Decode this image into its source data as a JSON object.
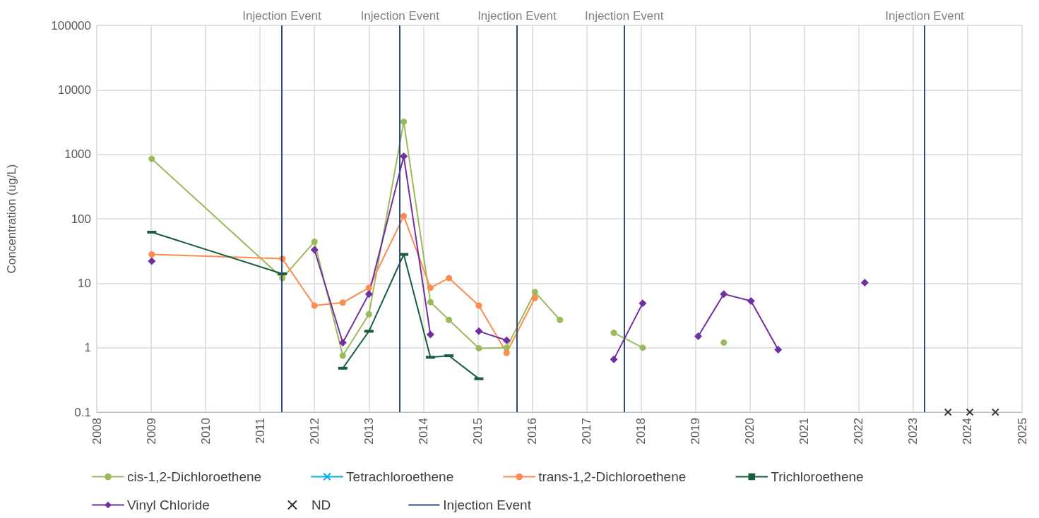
{
  "chart_data": {
    "type": "line",
    "ylabel": "Concentration (ug/L)",
    "log": "y",
    "grid": true,
    "legend": "bottom",
    "xlim": [
      2008,
      2025
    ],
    "xticks": [
      2008,
      2009,
      2010,
      2011,
      2012,
      2013,
      2014,
      2015,
      2016,
      2017,
      2018,
      2019,
      2020,
      2021,
      2022,
      2023,
      2024,
      2025
    ],
    "ylim": [
      0.1,
      100000
    ],
    "yticks": [
      0.1,
      1,
      10,
      100,
      1000,
      10000,
      100000
    ],
    "series": [
      {
        "name": "cis-1,2-Dichloroethene",
        "color": "#9bbb59",
        "marker": "circle",
        "x": [
          2009.01,
          2011.41,
          2012.0,
          2012.52,
          2013.0,
          2013.64,
          2014.13,
          2014.47,
          2015.02,
          2015.53,
          2016.05,
          2016.51,
          2017.0,
          2017.5,
          2018.03,
          2018.8,
          2019.52
        ],
        "values": [
          850,
          12,
          44,
          0.75,
          3.3,
          3200,
          5.1,
          2.7,
          0.98,
          1.0,
          7.3,
          2.7,
          null,
          1.7,
          1.0,
          null,
          1.2
        ]
      },
      {
        "name": "Tetrachloroethene",
        "color": "#00b0f0",
        "marker": "cross"
      },
      {
        "name": "trans-1,2-Dichloroethene",
        "color": "#ff8c4f",
        "marker": "circle",
        "x": [
          2009.01,
          2011.41,
          2012.0,
          2012.52,
          2013.0,
          2013.64,
          2014.13,
          2014.47,
          2015.02,
          2015.53,
          2016.05
        ],
        "values": [
          28,
          24,
          4.5,
          5.0,
          8.5,
          110,
          8.5,
          12,
          4.5,
          0.83,
          5.9
        ]
      },
      {
        "name": "Trichloroethene",
        "color": "#1a5c3e",
        "marker": "square",
        "x": [
          2009.01,
          2011.41,
          2012.0,
          2012.52,
          2013.0,
          2013.64,
          2014.13,
          2014.47,
          2015.02
        ],
        "values": [
          62,
          14,
          null,
          0.48,
          1.8,
          28,
          0.71,
          0.75,
          0.33
        ]
      },
      {
        "name": "Vinyl Chloride",
        "color": "#7030a0",
        "marker": "diamond",
        "x": [
          2009.01,
          2010.5,
          2012.0,
          2012.52,
          2013.0,
          2013.64,
          2014.13,
          2014.6,
          2015.02,
          2015.53,
          2016.5,
          2017.5,
          2018.03,
          2018.5,
          2019.05,
          2019.52,
          2020.02,
          2020.52,
          2021.3,
          2022.11
        ],
        "values": [
          22,
          null,
          33,
          1.2,
          6.8,
          930,
          1.6,
          null,
          1.8,
          1.3,
          null,
          0.66,
          4.9,
          null,
          1.5,
          6.8,
          5.3,
          0.93,
          null,
          10.2
        ]
      },
      {
        "name": "ND",
        "color": "#000000",
        "marker": "cross",
        "type": "scatter",
        "x": [
          2023.64,
          2024.04,
          2024.51
        ],
        "values": [
          0.1,
          0.1,
          0.1
        ]
      }
    ],
    "ref_lines": [
      {
        "axis": "x",
        "value": 2011.4,
        "label": "Injection Event",
        "color": "#2f4b7c"
      },
      {
        "axis": "x",
        "value": 2013.57,
        "label": "Injection Event",
        "color": "#2f4b7c"
      },
      {
        "axis": "x",
        "value": 2015.72,
        "label": "Injection Event",
        "color": "#2f4b7c"
      },
      {
        "axis": "x",
        "value": 2017.69,
        "label": "Injection Event",
        "color": "#2f4b7c"
      },
      {
        "axis": "x",
        "value": 2023.21,
        "label": "Injection Event",
        "color": "#2f4b7c"
      }
    ]
  }
}
